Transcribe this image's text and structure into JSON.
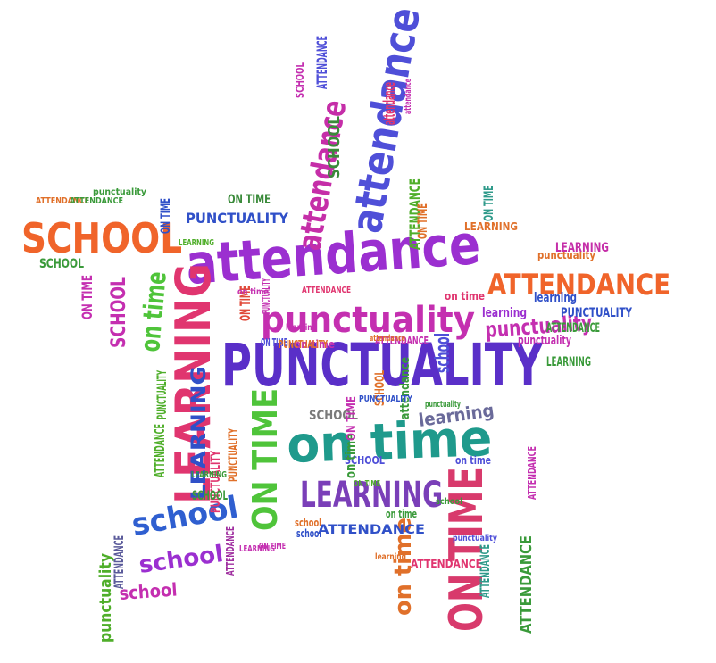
{
  "words": [
    {
      "text": "attendance",
      "color": "#9b2fd0"
    },
    {
      "text": "PUNCTUALITY",
      "color": "#5a2fc8"
    },
    {
      "text": "punctuality",
      "color": "#c42fb0"
    },
    {
      "text": "on time",
      "color": "#1f9a8c"
    },
    {
      "text": "LEARNING",
      "color": "#e0356f"
    },
    {
      "text": "LEARNING",
      "color": "#7a3fb8"
    },
    {
      "text": "SCHOOL",
      "color": "#f0642a"
    },
    {
      "text": "ATTENDANCE",
      "color": "#f0642a"
    },
    {
      "text": "ON TIME",
      "color": "#d83a6c"
    },
    {
      "text": "attendance",
      "color": "#4f4fd8"
    },
    {
      "text": "attendance",
      "color": "#c52ea8"
    },
    {
      "text": "ON TIME",
      "color": "#4fc43a"
    },
    {
      "text": "school",
      "color": "#2f5fd0"
    },
    {
      "text": "school",
      "color": "#9b2fd0"
    },
    {
      "text": "school",
      "color": "#c42fb0"
    },
    {
      "text": "punctuality",
      "color": "#c42fb0"
    },
    {
      "text": "PUNCTUALITY",
      "color": "#3050c8"
    },
    {
      "text": "ATTENDANCE",
      "color": "#4fae2a"
    },
    {
      "text": "ATTENDANCE",
      "color": "#3a9a3a"
    },
    {
      "text": "SCHOOL",
      "color": "#3a8a3a"
    },
    {
      "text": "SCHOOL",
      "color": "#c42fb0"
    },
    {
      "text": "SCHOOL",
      "color": "#7a7a7a"
    },
    {
      "text": "LEARNING",
      "color": "#3050c8"
    },
    {
      "text": "learning",
      "color": "#6a6a9a"
    },
    {
      "text": "on time",
      "color": "#4fc43a"
    },
    {
      "text": "on time",
      "color": "#e0702a"
    },
    {
      "text": "ON TIME",
      "color": "#3050c8"
    },
    {
      "text": "ON TIME",
      "color": "#c42fb0"
    },
    {
      "text": "ON TIME",
      "color": "#3a8a3a"
    },
    {
      "text": "ON TIME",
      "color": "#e04a3a"
    },
    {
      "text": "ON TIME",
      "color": "#2f9a8a"
    },
    {
      "text": "ATTENDANCE",
      "color": "#5a5a9a"
    },
    {
      "text": "ATTENDANCE",
      "color": "#a02fa0"
    },
    {
      "text": "ATTENDANCE",
      "color": "#3050c8"
    },
    {
      "text": "ATTENDANCE",
      "color": "#4fae2a"
    },
    {
      "text": "ATTENDANCE",
      "color": "#e0356f"
    },
    {
      "text": "ATTENDANCE",
      "color": "#2f9a8a"
    },
    {
      "text": "PUNCTUALITY",
      "color": "#e0356f"
    },
    {
      "text": "PUNCTUALITY",
      "color": "#e0702a"
    },
    {
      "text": "PUNCTUALITY",
      "color": "#4fae2a"
    },
    {
      "text": "PUNCTUALITY",
      "color": "#3050c8"
    },
    {
      "text": "punctuality",
      "color": "#c42fb0"
    },
    {
      "text": "punctuality",
      "color": "#e0702a"
    },
    {
      "text": "punctuality",
      "color": "#3a9a3a"
    },
    {
      "text": "learning",
      "color": "#9b2fd0"
    },
    {
      "text": "learning",
      "color": "#3050c8"
    },
    {
      "text": "LEARNING",
      "color": "#3a9a3a"
    },
    {
      "text": "LEARNING",
      "color": "#c52ea8"
    },
    {
      "text": "school",
      "color": "#4f4fd8"
    },
    {
      "text": "SCHOOL",
      "color": "#e0702a"
    },
    {
      "text": "SCHOOL",
      "color": "#3a9a3a"
    },
    {
      "text": "SCHOOL",
      "color": "#4f4fd8"
    },
    {
      "text": "on time",
      "color": "#3a9a3a"
    },
    {
      "text": "on time",
      "color": "#c42fb0"
    },
    {
      "text": "on time",
      "color": "#e0356f"
    },
    {
      "text": "ATTENDANCE",
      "color": "#3a9a3a"
    },
    {
      "text": "ATTENDANCE",
      "color": "#c42fb0"
    },
    {
      "text": "ATTENDANCE",
      "color": "#e0702a"
    },
    {
      "text": "attendance",
      "color": "#e0356f"
    },
    {
      "text": "attendance",
      "color": "#3a9a3a"
    },
    {
      "text": "ON TIME",
      "color": "#c42fb0"
    },
    {
      "text": "ON TIME",
      "color": "#e0702a"
    },
    {
      "text": "ON TIME",
      "color": "#4f4fd8"
    },
    {
      "text": "LEARNING",
      "color": "#e0702a"
    },
    {
      "text": "LEARNING",
      "color": "#4fae2a"
    },
    {
      "text": "PUNCTUALITY",
      "color": "#c42fb0"
    },
    {
      "text": "PUNCTUALITY",
      "color": "#e0702a"
    },
    {
      "text": "ATTENDANCE",
      "color": "#4f4fd8"
    },
    {
      "text": "ATTENDANCE",
      "color": "#e0356f"
    },
    {
      "text": "SCHOOL",
      "color": "#3a9a3a"
    },
    {
      "text": "SCHOOL",
      "color": "#c42fb0"
    },
    {
      "text": "school",
      "color": "#e0702a"
    },
    {
      "text": "school",
      "color": "#3050c8"
    },
    {
      "text": "on time",
      "color": "#4f4fd8"
    },
    {
      "text": "on time",
      "color": "#c42fb0"
    },
    {
      "text": "on time",
      "color": "#3a9a3a"
    },
    {
      "text": "learning",
      "color": "#e0702a"
    },
    {
      "text": "learning",
      "color": "#c42fb0"
    },
    {
      "text": "punctuality",
      "color": "#4f4fd8"
    },
    {
      "text": "punctuality",
      "color": "#3a9a3a"
    },
    {
      "text": "ATTENDANCE",
      "color": "#3a9a3a"
    },
    {
      "text": "ATTENDANCE",
      "color": "#c42fb0"
    },
    {
      "text": "ON TIME",
      "color": "#c42fb0"
    },
    {
      "text": "ON TIME",
      "color": "#4fae2a"
    },
    {
      "text": "LEARNING",
      "color": "#c42fb0"
    },
    {
      "text": "LEARNING",
      "color": "#3a9a3a"
    },
    {
      "text": "PUNCTUALITY",
      "color": "#3050c8"
    },
    {
      "text": "punctuality",
      "color": "#4fae2a"
    },
    {
      "text": "school",
      "color": "#3a9a3a"
    },
    {
      "text": "attendance",
      "color": "#e0702a"
    },
    {
      "text": "attendance",
      "color": "#c42fb0"
    }
  ]
}
